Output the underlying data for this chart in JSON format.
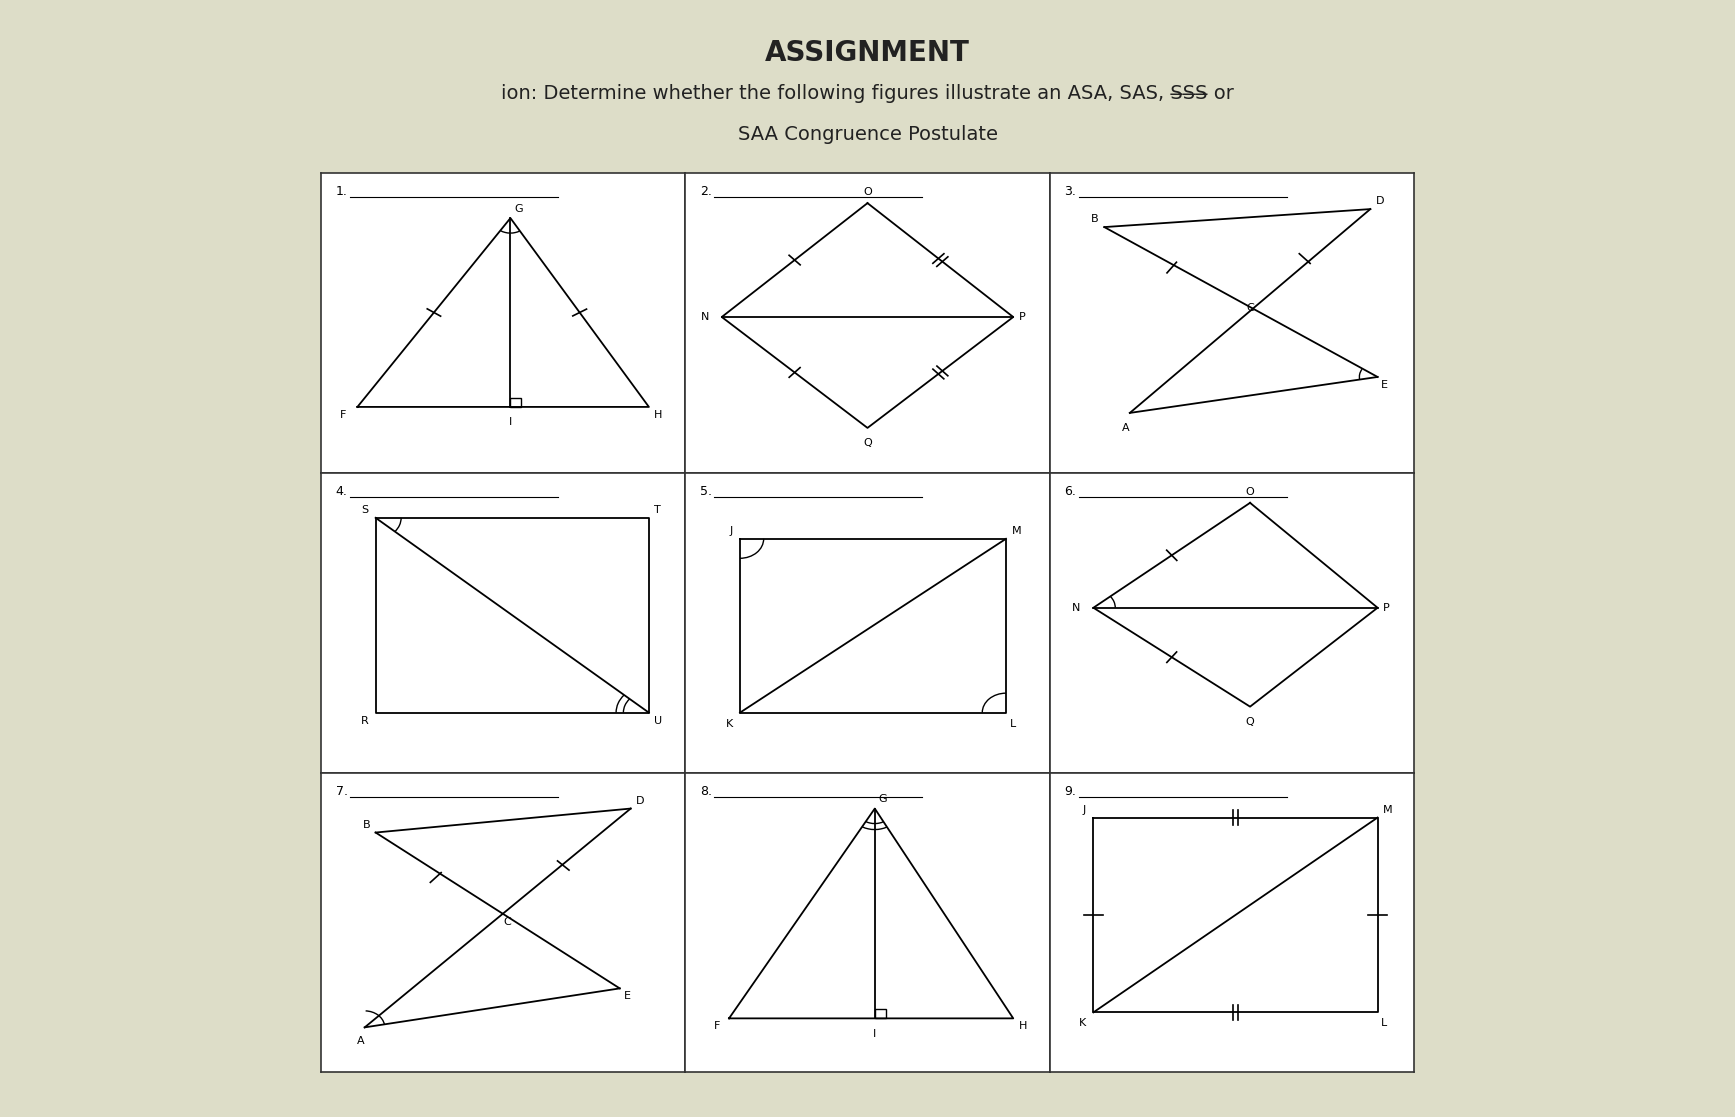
{
  "bg_color": "#ddddc8",
  "grid_color": "#333333",
  "figure_bg": "#ffffff",
  "text_color": "#222222",
  "title": "ASSIGNMENT",
  "line1": "ion: Determine whether the following figures illustrate an ASA, ŚAS, S̶S̶S̶ or",
  "line2": "SAA Congruence Postulate"
}
